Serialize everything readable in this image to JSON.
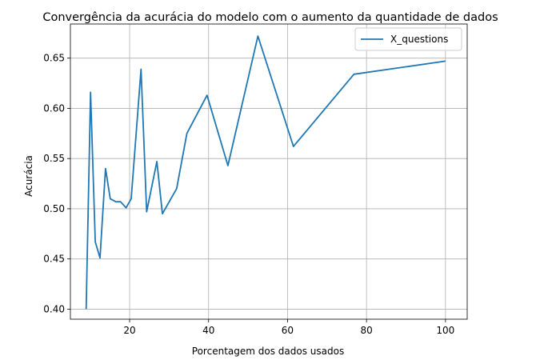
{
  "chart_data": {
    "type": "line",
    "title": "Convergência da acurácia do modelo com o aumento da quantidade de dados",
    "xlabel": "Porcentagem dos dados usados",
    "ylabel": "Acurácia",
    "xlim": [
      5,
      105.5
    ],
    "ylim": [
      0.39,
      0.684
    ],
    "xticks": [
      20,
      40,
      60,
      80,
      100
    ],
    "yticks": [
      0.4,
      0.45,
      0.5,
      0.55,
      0.6,
      0.65
    ],
    "xtick_labels": [
      "20",
      "40",
      "60",
      "80",
      "100"
    ],
    "ytick_labels": [
      "0.40",
      "0.45",
      "0.50",
      "0.55",
      "0.60",
      "0.65"
    ],
    "grid": true,
    "legend_position": "top-right",
    "series": [
      {
        "name": "X_questions",
        "color": "#1f77b4",
        "x": [
          9,
          10.1,
          11.3,
          12.5,
          13.9,
          15.1,
          16.5,
          17.7,
          19.1,
          20.4,
          22.9,
          24.3,
          26.9,
          28.3,
          31.9,
          34.5,
          39.6,
          44.9,
          52.5,
          61.5,
          76.8,
          100
        ],
        "y": [
          0.4,
          0.616,
          0.467,
          0.451,
          0.54,
          0.51,
          0.507,
          0.507,
          0.501,
          0.51,
          0.639,
          0.497,
          0.547,
          0.495,
          0.52,
          0.575,
          0.613,
          0.543,
          0.672,
          0.562,
          0.634,
          0.647
        ]
      }
    ]
  }
}
